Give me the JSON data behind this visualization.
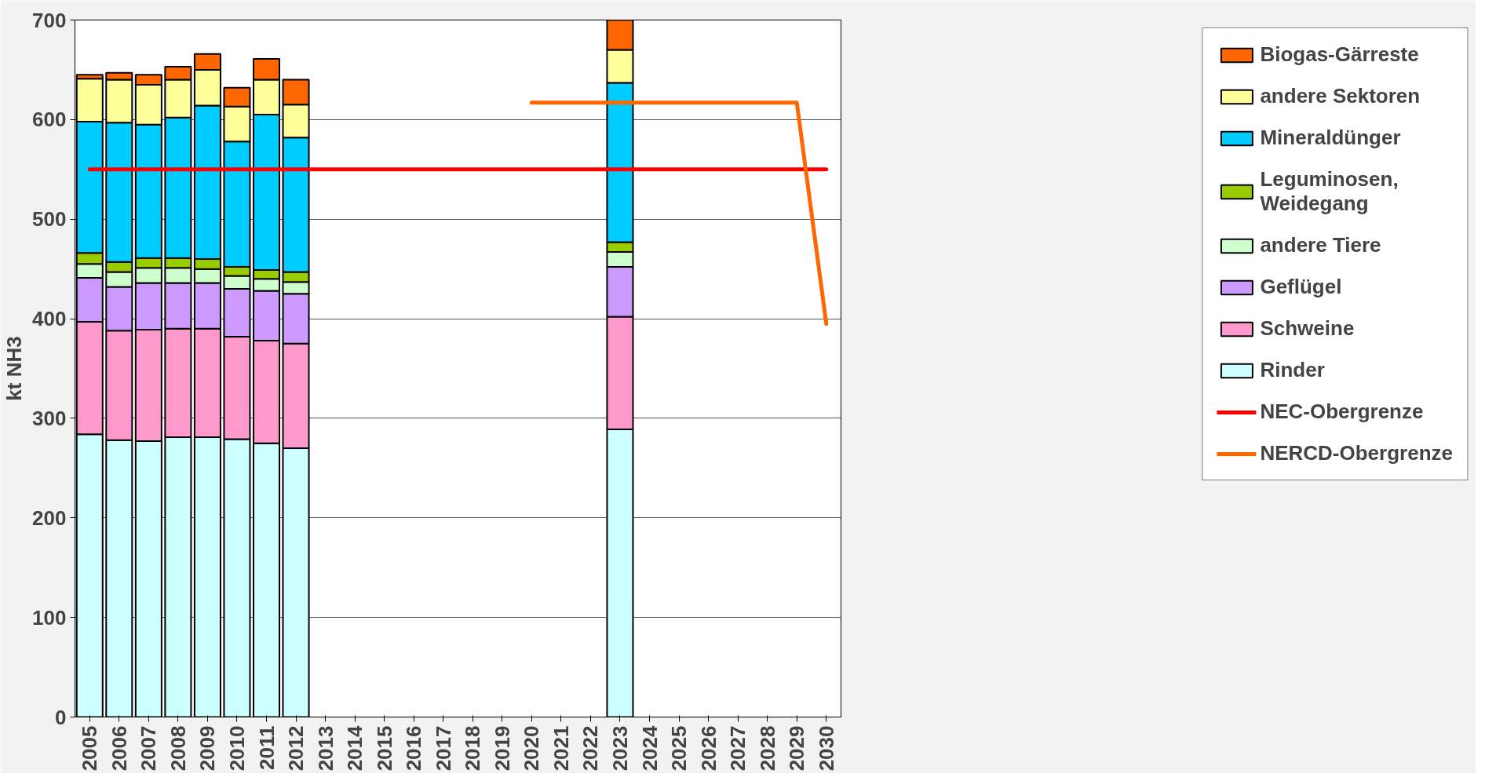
{
  "chart_data": {
    "type": "bar",
    "stacked": true,
    "ylabel": "kt NH3",
    "categories": [
      "2005",
      "2006",
      "2007",
      "2008",
      "2009",
      "2010",
      "2011",
      "2012",
      "2013",
      "2014",
      "2015",
      "2016",
      "2017",
      "2018",
      "2019",
      "2020",
      "2021",
      "2022",
      "2023",
      "2024",
      "2025",
      "2026",
      "2027",
      "2028",
      "2029",
      "2030"
    ],
    "ylim": [
      0,
      700
    ],
    "yticks": [
      0,
      100,
      200,
      300,
      400,
      500,
      600,
      700
    ],
    "grid": "y",
    "legend": "right",
    "series": [
      {
        "name": "Rinder",
        "color": "#ccffff",
        "values": [
          284,
          278,
          277,
          281,
          281,
          279,
          275,
          270,
          null,
          null,
          null,
          null,
          null,
          null,
          null,
          null,
          null,
          null,
          289,
          null,
          null,
          null,
          null,
          null,
          null,
          null
        ]
      },
      {
        "name": "Schweine",
        "color": "#ff99cc",
        "values": [
          113,
          110,
          112,
          109,
          109,
          103,
          103,
          105,
          null,
          null,
          null,
          null,
          null,
          null,
          null,
          null,
          null,
          null,
          113,
          null,
          null,
          null,
          null,
          null,
          null,
          null
        ]
      },
      {
        "name": "Geflügel",
        "color": "#cc99ff",
        "values": [
          44,
          44,
          47,
          46,
          46,
          48,
          50,
          50,
          null,
          null,
          null,
          null,
          null,
          null,
          null,
          null,
          null,
          null,
          50,
          null,
          null,
          null,
          null,
          null,
          null,
          null
        ]
      },
      {
        "name": "andere Tiere",
        "color": "#ccffcc",
        "values": [
          14,
          15,
          15,
          15,
          14,
          13,
          12,
          12,
          null,
          null,
          null,
          null,
          null,
          null,
          null,
          null,
          null,
          null,
          15,
          null,
          null,
          null,
          null,
          null,
          null,
          null
        ]
      },
      {
        "name": "Leguminosen, Weidegang",
        "color": "#99cc00",
        "values": [
          11,
          10,
          10,
          10,
          10,
          9,
          9,
          10,
          null,
          null,
          null,
          null,
          null,
          null,
          null,
          null,
          null,
          null,
          10,
          null,
          null,
          null,
          null,
          null,
          null,
          null
        ]
      },
      {
        "name": "Mineraldünger",
        "color": "#00ccff",
        "values": [
          132,
          140,
          134,
          141,
          154,
          126,
          156,
          135,
          null,
          null,
          null,
          null,
          null,
          null,
          null,
          null,
          null,
          null,
          160,
          null,
          null,
          null,
          null,
          null,
          null,
          null
        ]
      },
      {
        "name": "andere Sektoren",
        "color": "#ffff99",
        "values": [
          43,
          43,
          40,
          38,
          36,
          35,
          35,
          33,
          null,
          null,
          null,
          null,
          null,
          null,
          null,
          null,
          null,
          null,
          33,
          null,
          null,
          null,
          null,
          null,
          null,
          null
        ]
      },
      {
        "name": "Biogas-Gärreste",
        "color": "#ff6600",
        "values": [
          4,
          7,
          10,
          13,
          16,
          19,
          21,
          25,
          null,
          null,
          null,
          null,
          null,
          null,
          null,
          null,
          null,
          null,
          30,
          null,
          null,
          null,
          null,
          null,
          null,
          null
        ]
      },
      {
        "name": "NEC-Obergrenze",
        "type": "line",
        "color": "#ff0000",
        "values": [
          550,
          550,
          550,
          550,
          550,
          550,
          550,
          550,
          550,
          550,
          550,
          550,
          550,
          550,
          550,
          550,
          550,
          550,
          550,
          550,
          550,
          550,
          550,
          550,
          550,
          550
        ]
      },
      {
        "name": "NERCD-Obergrenze",
        "type": "line",
        "color": "#ff6600",
        "values": [
          null,
          null,
          null,
          null,
          null,
          null,
          null,
          null,
          null,
          null,
          null,
          null,
          null,
          null,
          null,
          617,
          617,
          617,
          617,
          617,
          617,
          617,
          617,
          617,
          617,
          395
        ]
      }
    ]
  }
}
